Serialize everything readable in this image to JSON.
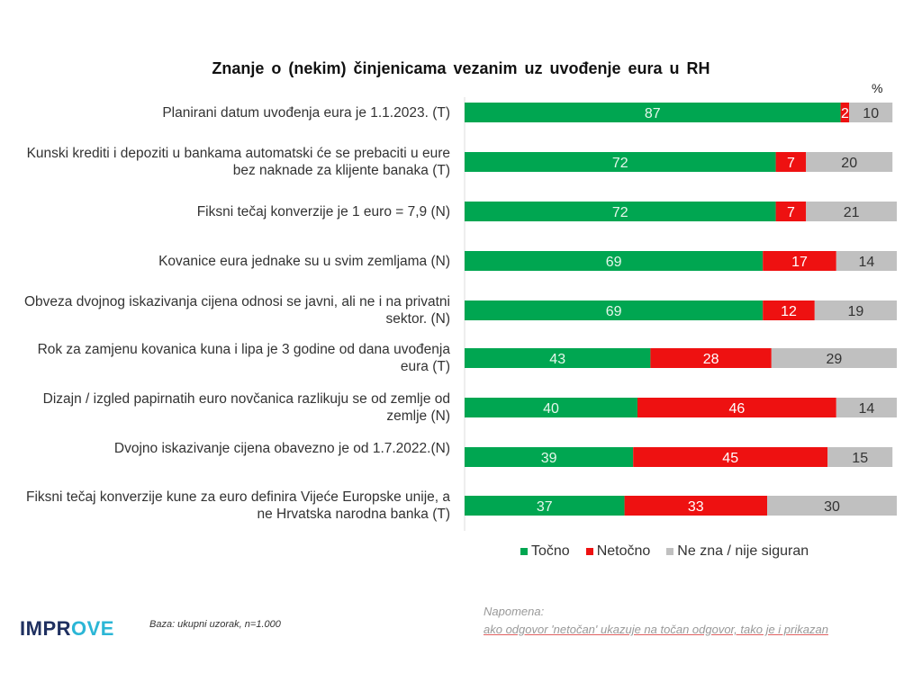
{
  "chart_data": {
    "type": "bar",
    "orientation": "horizontal",
    "stacked": true,
    "title": "Znanje o (nekim) činjenicama vezanim uz uvođenje eura u RH",
    "unit_label": "%",
    "categories": [
      "Planirani datum uvođenja eura je 1.1.2023. (T)",
      "Kunski krediti i depoziti u bankama automatski će se prebaciti u eure bez naknade za klijente banaka (T)",
      "Fiksni tečaj konverzije je 1 euro = 7,9 (N)",
      "Kovanice eura jednake su u svim zemljama (N)",
      "Obveza dvojnog iskazivanja cijena odnosi se javni, ali ne i na privatni sektor. (N)",
      "Rok za zamjenu kovanica kuna i lipa je 3 godine od dana uvođenja eura (T)",
      "Dizajn / izgled papirnatih euro novčanica razlikuju se od zemlje od zemlje (N)",
      "Dvojno iskazivanje cijena obavezno je od 1.7.2022.(N)",
      "Fiksni tečaj konverzije kune za euro definira Vijeće Europske unije, a ne Hrvatska narodna banka (T)"
    ],
    "series": [
      {
        "name": "Točno",
        "color": "#00a651",
        "values": [
          87,
          72,
          72,
          69,
          69,
          43,
          40,
          39,
          37
        ]
      },
      {
        "name": "Netočno",
        "color": "#ee1111",
        "values": [
          2,
          7,
          7,
          17,
          12,
          28,
          46,
          45,
          33
        ]
      },
      {
        "name": "Ne zna / nije siguran",
        "color": "#c0c0c0",
        "values": [
          10,
          20,
          21,
          14,
          19,
          29,
          14,
          15,
          30
        ]
      }
    ],
    "xlim": [
      0,
      100
    ],
    "grid": false,
    "legend_position": "bottom"
  },
  "footer": {
    "logo_main": "IMPR",
    "logo_accent": "OVE",
    "base": "Baza: ukupni uzorak, n=1.000",
    "note_title": "Napomena:",
    "note_text": "ako odgovor 'netočan' ukazuje na točan odgovor, tako je i prikazan"
  }
}
